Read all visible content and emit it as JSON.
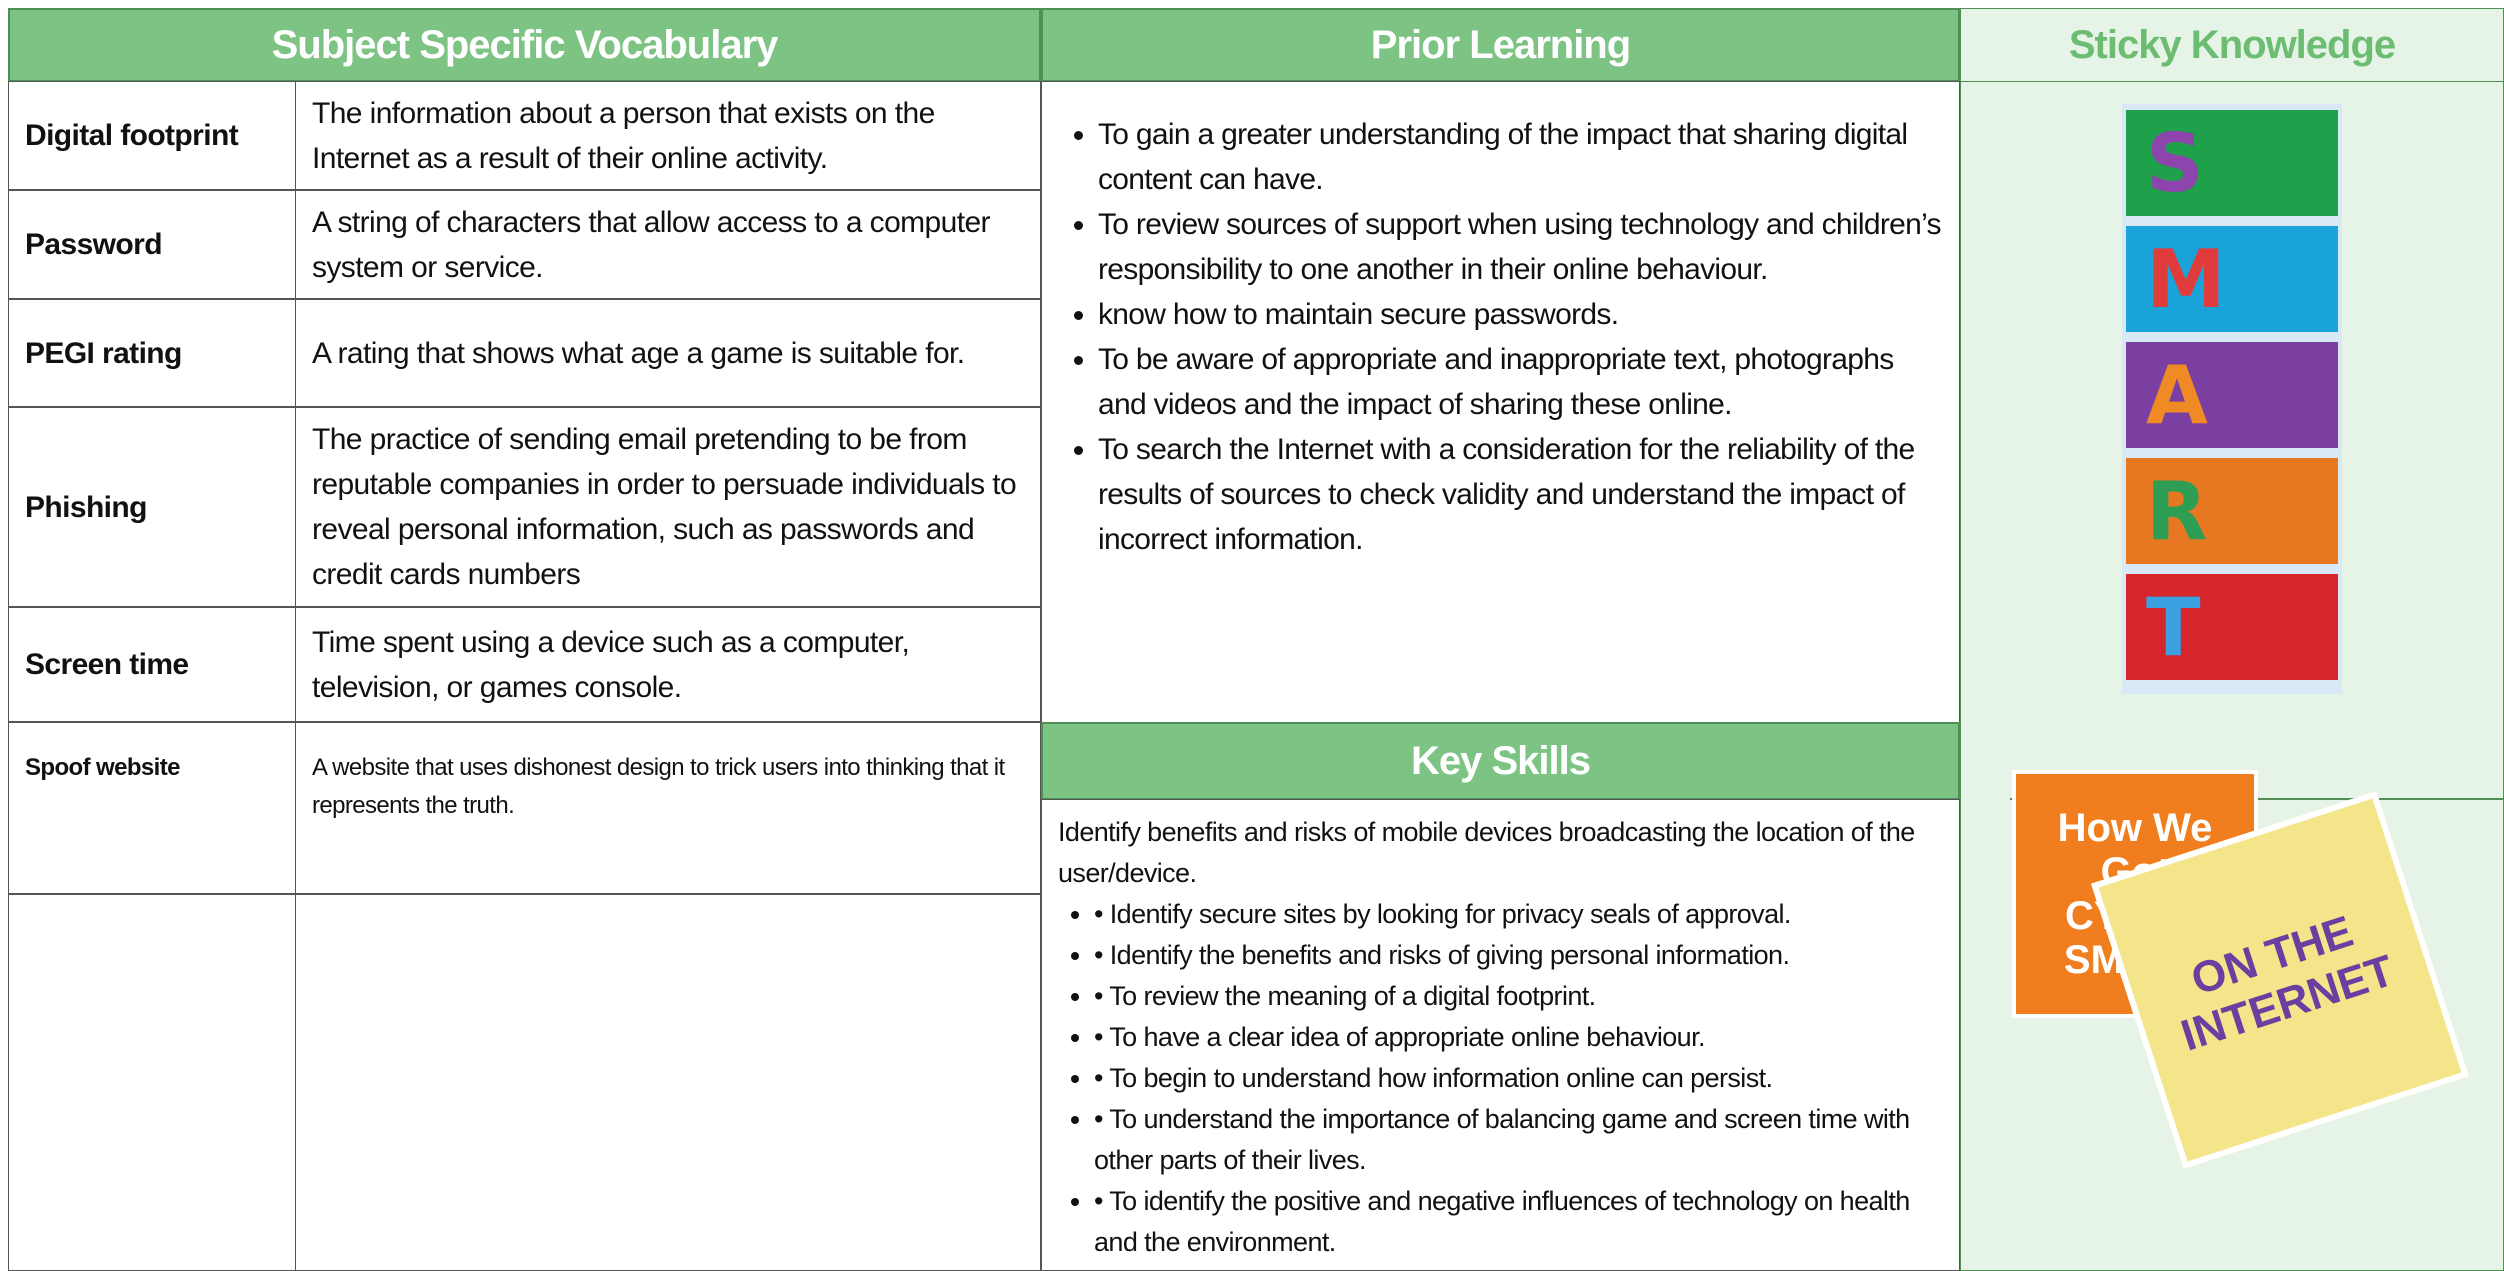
{
  "vocabulary": {
    "header": "Subject Specific Vocabulary",
    "rows": [
      {
        "term": "Digital footprint",
        "definition": "The information about a person that exists on the Internet as a result of their online activity."
      },
      {
        "term": "Password",
        "definition": "A string of characters that allow access to a computer system or service."
      },
      {
        "term": "PEGI rating",
        "definition": "A rating that shows what age a game is suitable for."
      },
      {
        "term": "Phishing",
        "definition": "The practice of sending email pretending to be from reputable companies in order to persuade individuals to reveal personal information, such as passwords and credit cards numbers"
      },
      {
        "term": "Screen time",
        "definition": "Time spent using a device such as a computer, television, or games console."
      },
      {
        "term": "Spoof website",
        "definition": "A website that uses dishonest design to trick users into thinking that it represents the truth."
      }
    ]
  },
  "prior_learning": {
    "header": "Prior Learning",
    "items": [
      "To gain a greater understanding of the impact that sharing digital content can have.",
      "To review sources of support when using technology and children’s responsibility to one another in their online behaviour.",
      "know how to maintain secure passwords.",
      "To be aware of appropriate and inappropriate text, photographs and videos and the impact of sharing these online.",
      "To search the Internet with a consideration for the reliability of the results of sources to check validity and understand the impact of incorrect information."
    ]
  },
  "key_skills": {
    "header": "Key Skills",
    "intro": "Identify benefits and risks of mobile devices broadcasting the location of the user/device.",
    "items": [
      "• Identify secure sites by looking for privacy seals of approval.",
      "• Identify the benefits and risks of giving personal information.",
      "• To review the meaning of a digital footprint.",
      "• To have a clear idea of appropriate online behaviour.",
      "• To begin to understand how information online can persist.",
      "• To understand the importance of balancing game and screen time with other parts of their lives.",
      "• To identify the positive and negative influences of technology on health and the environment."
    ]
  },
  "sticky_knowledge": {
    "header": "Sticky Knowledge",
    "posters": [
      "S",
      "M",
      "A",
      "R",
      "T"
    ],
    "books": [
      "How We Got CYBER SMART",
      "ON THE INTERNET"
    ]
  }
}
